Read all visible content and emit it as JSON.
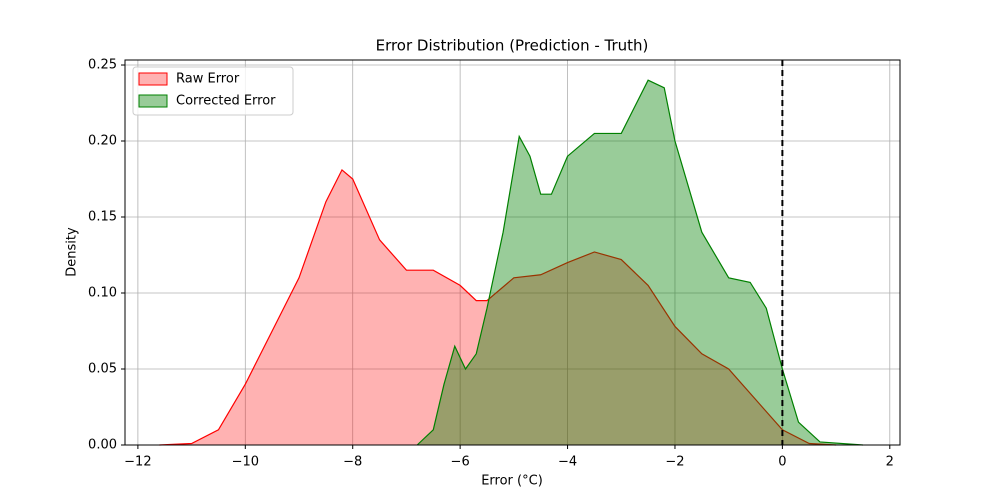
{
  "chart_data": {
    "type": "area",
    "title": "Error Distribution (Prediction - Truth)",
    "xlabel": "Error (°C)",
    "ylabel": "Density",
    "xlim": [
      -12.24,
      2.19
    ],
    "ylim": [
      0,
      0.2533
    ],
    "xticks": [
      {
        "value": -12,
        "label": "−12"
      },
      {
        "value": -10,
        "label": "−10"
      },
      {
        "value": -8,
        "label": "−8"
      },
      {
        "value": -6,
        "label": "−6"
      },
      {
        "value": -4,
        "label": "−4"
      },
      {
        "value": -2,
        "label": "−2"
      },
      0,
      2
    ],
    "yticks": [
      {
        "value": 0,
        "label": "0.00"
      },
      {
        "value": 0.05,
        "label": "0.05"
      },
      {
        "value": 0.1,
        "label": "0.10"
      },
      {
        "value": 0.15,
        "label": "0.15"
      },
      {
        "value": 0.2,
        "label": "0.20"
      },
      {
        "value": 0.25,
        "label": "0.25"
      }
    ],
    "grid": true,
    "legend": "upper left",
    "vline": 0,
    "series": [
      {
        "name": "Raw Error",
        "color": "#ff0000",
        "x": [
          -11.6,
          -11,
          -10.5,
          -10,
          -9.5,
          -9,
          -8.5,
          -8.2,
          -8,
          -7.5,
          -7,
          -6.5,
          -6,
          -5.7,
          -5.5,
          -5,
          -4.5,
          -4,
          -3.5,
          -3,
          -2.5,
          -2,
          -1.5,
          -1,
          -0.5,
          0,
          0.5,
          1
        ],
        "values": [
          0,
          0.001,
          0.01,
          0.04,
          0.075,
          0.11,
          0.16,
          0.181,
          0.175,
          0.135,
          0.115,
          0.115,
          0.105,
          0.095,
          0.095,
          0.11,
          0.112,
          0.12,
          0.127,
          0.122,
          0.105,
          0.078,
          0.06,
          0.05,
          0.03,
          0.01,
          0.001,
          0
        ]
      },
      {
        "name": "Corrected Error",
        "color": "#008000",
        "x": [
          -6.8,
          -6.5,
          -6.3,
          -6.1,
          -5.9,
          -5.7,
          -5.5,
          -5.2,
          -4.9,
          -4.7,
          -4.5,
          -4.3,
          -4,
          -3.5,
          -3,
          -2.5,
          -2.2,
          -2,
          -1.5,
          -1,
          -0.6,
          -0.3,
          0,
          0.3,
          0.7,
          1.5
        ],
        "values": [
          0,
          0.01,
          0.04,
          0.065,
          0.05,
          0.06,
          0.09,
          0.14,
          0.203,
          0.19,
          0.165,
          0.165,
          0.19,
          0.205,
          0.205,
          0.24,
          0.235,
          0.2,
          0.14,
          0.11,
          0.107,
          0.09,
          0.05,
          0.015,
          0.002,
          0
        ]
      }
    ]
  }
}
